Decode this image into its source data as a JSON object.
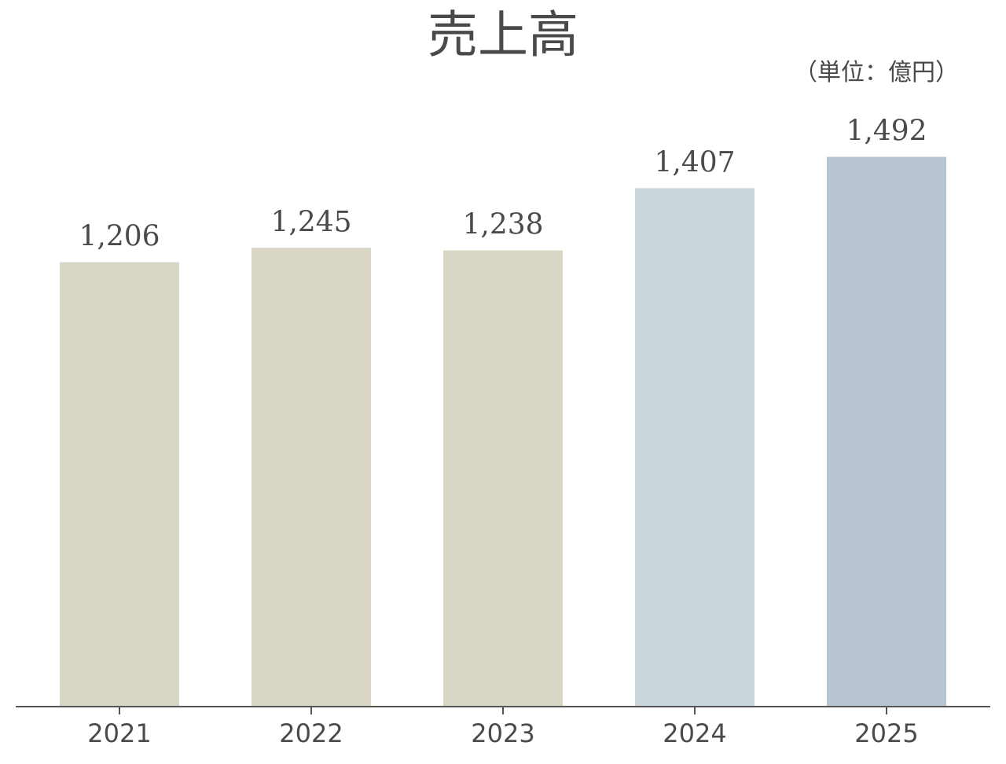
{
  "chart_data": {
    "type": "bar",
    "title": "売上高",
    "subtitle": "（単位：億円）",
    "categories": [
      "2021",
      "2022",
      "2023",
      "2024",
      "2025"
    ],
    "values": [
      1206,
      1245,
      1238,
      1407,
      1492
    ],
    "value_labels": [
      "1,206",
      "1,245",
      "1,238",
      "1,407",
      "1,492"
    ],
    "colors": [
      "#d8d5c5",
      "#d8d5c5",
      "#d8d5c5",
      "#c9d7dc",
      "#b8c4d3"
    ],
    "ylim": [
      0,
      1700
    ]
  }
}
